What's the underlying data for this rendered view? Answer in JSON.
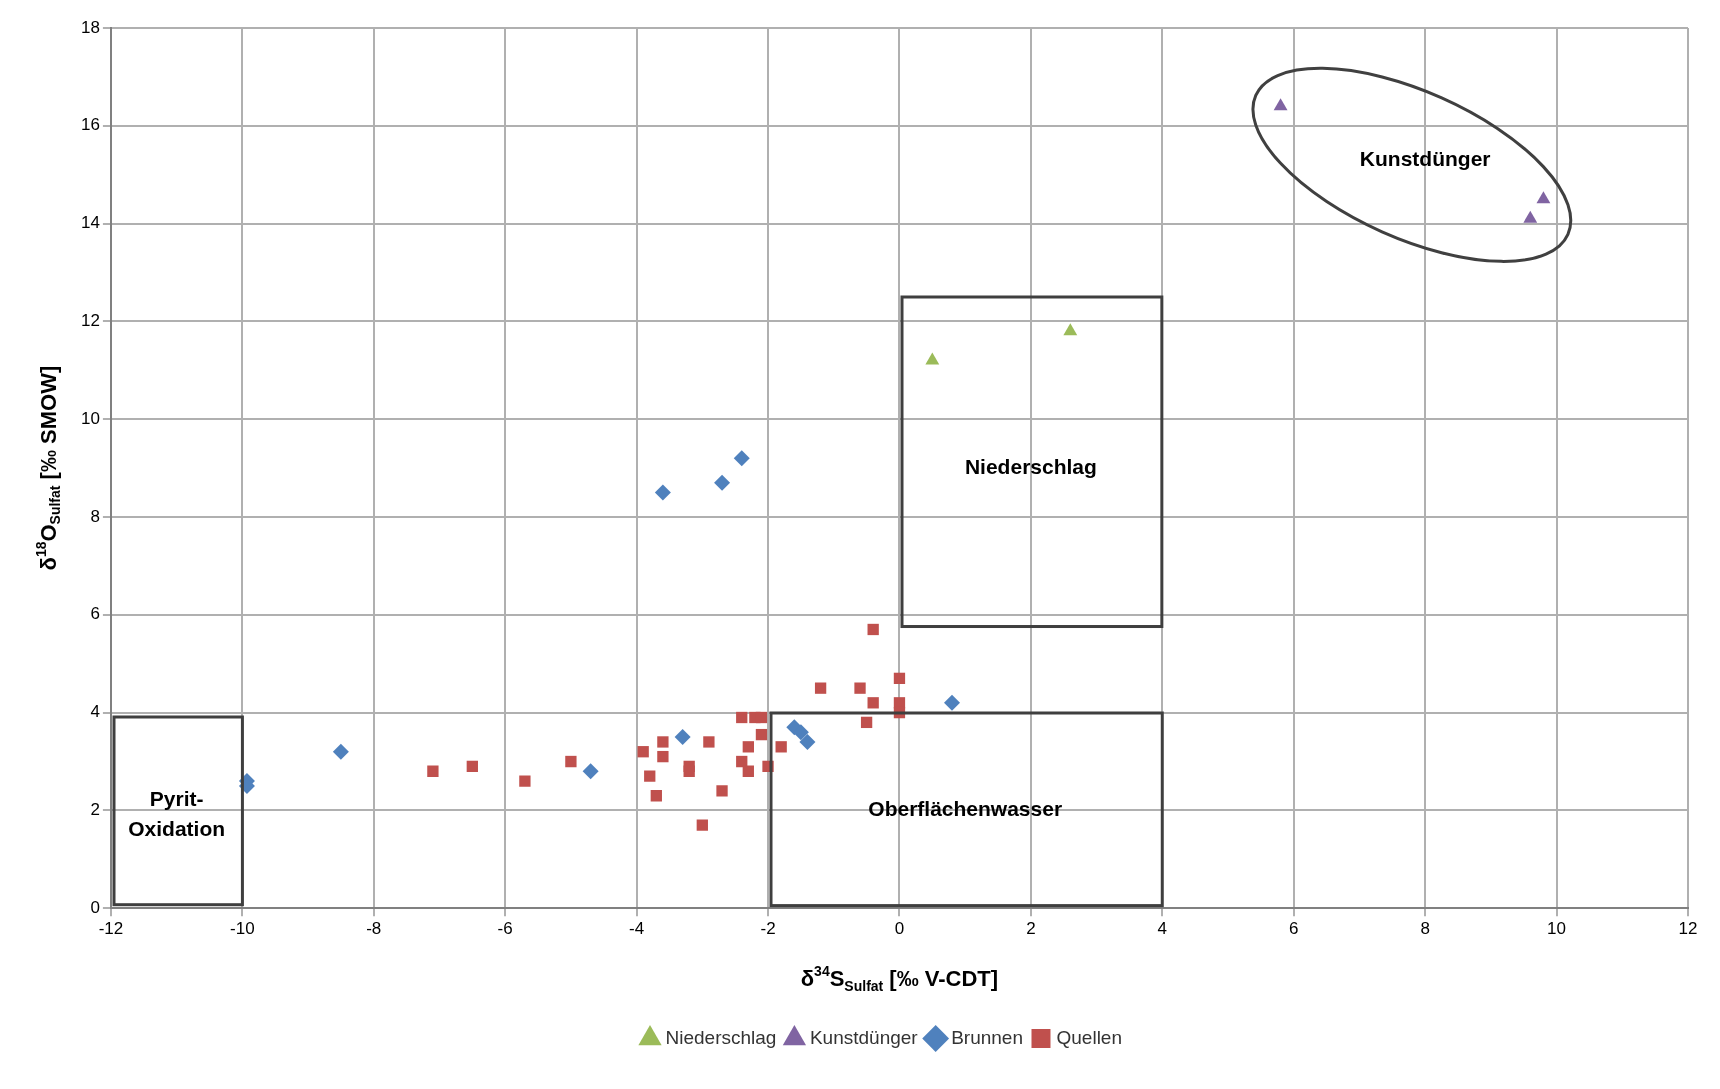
{
  "chart_data": {
    "type": "scatter",
    "xlabel": "δ$^{34}$S$_{Sulfat}$ [‰ V-CDT]",
    "ylabel": "δ$^{18}$O$_{Sulfat}$ [‰ SMOW]",
    "xlim": [
      -12,
      12
    ],
    "xticks": [
      -12,
      -10,
      -8,
      -6,
      -4,
      -2,
      0,
      2,
      4,
      6,
      8,
      10,
      12
    ],
    "ylim": [
      0,
      18
    ],
    "yticks": [
      0,
      2,
      4,
      6,
      8,
      10,
      12,
      14,
      16,
      18
    ],
    "grid": true,
    "legend": "bottom",
    "series": [
      {
        "name": "Niederschlag",
        "color": "#9bbb59",
        "marker": "triangle",
        "x": [
          0.5,
          2.6
        ],
        "values": [
          11.2,
          11.8
        ]
      },
      {
        "name": "Kunstdünger",
        "color": "#8064a2",
        "marker": "triangle",
        "x": [
          5.8,
          9.6,
          9.8
        ],
        "values": [
          16.4,
          14.1,
          14.5
        ]
      },
      {
        "name": "Brunnen",
        "color": "#4f81bd",
        "marker": "diamond",
        "x": [
          -9.93,
          -9.93,
          -8.5,
          -4.7,
          -3.6,
          -3.3,
          -2.7,
          -2.4,
          -1.6,
          -1.5,
          -1.4,
          0.8
        ],
        "values": [
          2.6,
          2.5,
          3.2,
          2.8,
          8.5,
          3.5,
          8.7,
          9.2,
          3.7,
          3.6,
          3.4,
          4.2
        ]
      },
      {
        "name": "Quellen",
        "color": "#c0504d",
        "marker": "square",
        "x": [
          -7.1,
          -6.5,
          -5.7,
          -5.0,
          -3.9,
          -3.8,
          -3.7,
          -3.6,
          -3.6,
          -3.2,
          -3.2,
          -3.0,
          -2.9,
          -2.7,
          -2.4,
          -2.4,
          -2.3,
          -2.3,
          -2.2,
          -2.1,
          -2.1,
          -2.0,
          -1.8,
          -1.2,
          -0.6,
          -0.5,
          -0.4,
          -0.4,
          0,
          0,
          0
        ],
        "values": [
          2.8,
          2.9,
          2.6,
          3.0,
          3.2,
          2.7,
          2.3,
          3.4,
          3.1,
          2.9,
          2.8,
          1.7,
          3.4,
          2.4,
          3.9,
          3.0,
          3.3,
          2.8,
          3.9,
          3.55,
          3.9,
          2.9,
          3.3,
          4.5,
          4.5,
          3.8,
          5.7,
          4.2,
          4.7,
          4.2,
          4.0
        ]
      }
    ],
    "annotations": [
      "Pyrit-\nOxidation",
      "Oberflächenwasser",
      "Niederschlag",
      "Kunstdünger"
    ]
  }
}
